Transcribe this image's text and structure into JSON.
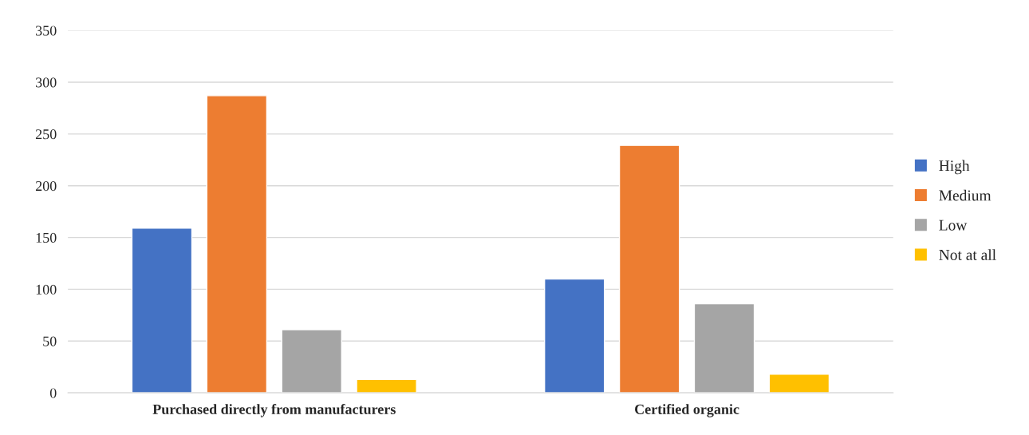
{
  "chart_data": {
    "type": "bar",
    "categories": [
      "Purchased directly from manufacturers",
      "Certified organic"
    ],
    "series": [
      {
        "name": "High",
        "color": "#4472c4",
        "values": [
          159,
          110
        ]
      },
      {
        "name": "Medium",
        "color": "#ed7d31",
        "values": [
          287,
          239
        ]
      },
      {
        "name": "Low",
        "color": "#a5a5a5",
        "values": [
          61,
          86
        ]
      },
      {
        "name": "Not at all",
        "color": "#ffc000",
        "values": [
          13,
          18
        ]
      }
    ],
    "ylim": [
      0,
      350
    ],
    "yticks": [
      0,
      50,
      100,
      150,
      200,
      250,
      300,
      350
    ],
    "grid": "y",
    "legend": "right"
  }
}
